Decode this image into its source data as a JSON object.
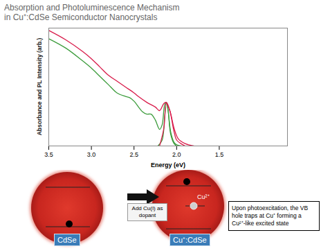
{
  "header": {
    "title": [
      "Absorption and Photoluminescence Mechanism",
      "in Cu⁺:CdSe Semiconductor Nanocrystals"
    ]
  },
  "chart_data": {
    "type": "line",
    "xlabel": "Energy (eV)",
    "ylabel": "Absorbance and PL Intensity (arb.)",
    "xlim": [
      3.5,
      0.7
    ],
    "xticks": [
      3.5,
      {
        "value": 3,
        "label": "3.0"
      },
      2.5,
      {
        "value": 2,
        "label": "2.0"
      },
      1.5
    ],
    "ylim": [
      0,
      1
    ],
    "grid": false,
    "tick_labels": "x",
    "series": [
      {
        "color": "#3c9c3c",
        "x": [
          3.5,
          3.3,
          3.1,
          3.0,
          2.9,
          2.8,
          2.7,
          2.6,
          2.55,
          2.5,
          2.4,
          2.35,
          2.3,
          2.25,
          2.2,
          2.17,
          2.14,
          2.12,
          2.1,
          2.07,
          2.03,
          2.0,
          1.95
        ],
        "values": [
          0.91,
          0.83,
          0.72,
          0.66,
          0.59,
          0.52,
          0.45,
          0.42,
          0.41,
          0.38,
          0.29,
          0.27,
          0.27,
          0.22,
          0.14,
          0.18,
          0.35,
          0.37,
          0.3,
          0.12,
          0.03,
          0.01,
          0.0
        ]
      },
      {
        "color": "#3c9c3c",
        "x": [
          2.22,
          2.17,
          2.14,
          2.12,
          2.1,
          2.07,
          2.03,
          2.0
        ],
        "values": [
          0.0,
          0.05,
          0.25,
          0.37,
          0.3,
          0.1,
          0.02,
          0.0
        ]
      },
      {
        "color": "#d81b4a",
        "x": [
          3.5,
          3.3,
          3.1,
          3.0,
          2.9,
          2.8,
          2.7,
          2.6,
          2.5,
          2.45,
          2.35,
          2.25,
          2.2,
          2.15,
          2.12,
          2.08,
          2.03,
          2.0,
          1.95,
          1.9
        ],
        "values": [
          0.98,
          0.9,
          0.8,
          0.74,
          0.67,
          0.6,
          0.55,
          0.5,
          0.45,
          0.42,
          0.37,
          0.33,
          0.3,
          0.36,
          0.37,
          0.3,
          0.12,
          0.05,
          0.02,
          0.0
        ]
      },
      {
        "color": "#d81b4a",
        "x": [
          2.2,
          2.15,
          2.12,
          2.08,
          2.03,
          1.98,
          1.9,
          1.8
        ],
        "values": [
          0.0,
          0.15,
          0.36,
          0.3,
          0.15,
          0.06,
          0.02,
          0.0
        ]
      }
    ]
  },
  "diagram": {
    "left": {
      "label": "CdSe"
    },
    "arrow_label": "Add Cu(I) as dopant",
    "right": {
      "label": "Cu⁺:CdSe",
      "trap_label": "Cu²⁺"
    },
    "note": "Upon photoexcitation, the VB hole traps at Cu⁺ forming a Cu²⁺-like excited state"
  }
}
